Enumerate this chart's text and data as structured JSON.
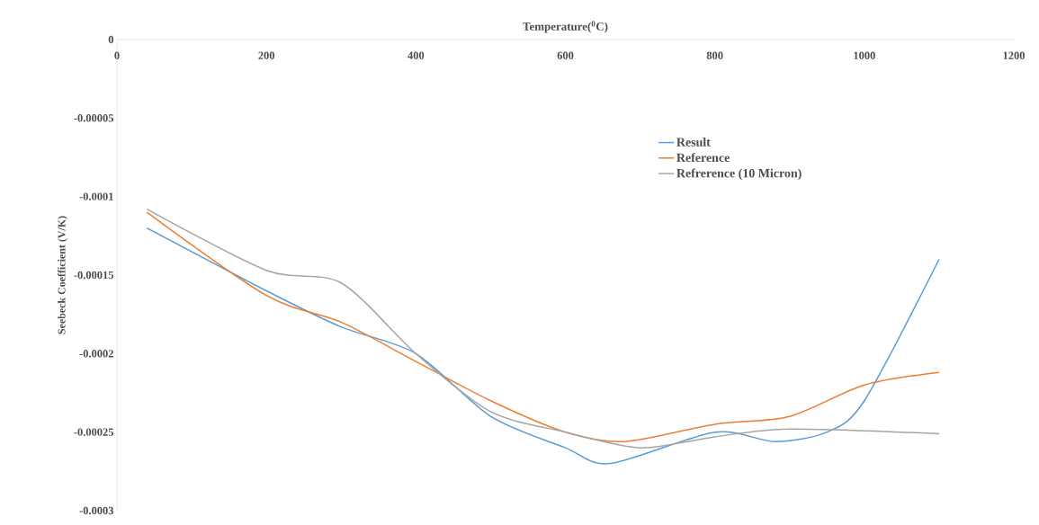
{
  "chart_data": {
    "type": "line",
    "xlabel": "Temperature($^{0}$C)",
    "ylabel": "Seebeck Coefficient (V/K)",
    "xlim": [
      0,
      1200
    ],
    "xticks": [
      0,
      200,
      400,
      600,
      800,
      1000,
      1200
    ],
    "ylim": [
      -0.0003,
      0
    ],
    "yticks": [
      {
        "value": 0,
        "label": "0"
      },
      {
        "value": -5e-05,
        "label": "-0.00005"
      },
      {
        "value": -0.0001,
        "label": "-0.0001"
      },
      {
        "value": -0.00015,
        "label": "-0.00015"
      },
      {
        "value": -0.0002,
        "label": "-0.0002"
      },
      {
        "value": -0.00025,
        "label": "-0.00025"
      },
      {
        "value": -0.0003,
        "label": "-0.0003"
      }
    ],
    "grid": false,
    "legend": "right",
    "marker": "none",
    "line_style": "solid",
    "series": [
      {
        "name": "Result",
        "color": "#5b9bd5",
        "x": [
          40,
          200,
          300,
          400,
          500,
          600,
          660,
          800,
          880,
          950,
          1000,
          1100
        ],
        "values": [
          -0.00012,
          -0.00016,
          -0.000183,
          -0.0002,
          -0.00024,
          -0.00026,
          -0.00027,
          -0.00025,
          -0.000256,
          -0.00025,
          -0.00023,
          -0.00014
        ]
      },
      {
        "name": "Reference",
        "color": "#ed7d31",
        "x": [
          40,
          200,
          300,
          400,
          500,
          600,
          680,
          800,
          900,
          1000,
          1100
        ],
        "values": [
          -0.00011,
          -0.000163,
          -0.00018,
          -0.000205,
          -0.00023,
          -0.00025,
          -0.000256,
          -0.000245,
          -0.00024,
          -0.00022,
          -0.000212
        ]
      },
      {
        "name": "Refrerence (10 Micron)",
        "color": "#a5a5a5",
        "x": [
          40,
          200,
          300,
          400,
          500,
          600,
          700,
          800,
          900,
          1100
        ],
        "values": [
          -0.000108,
          -0.000147,
          -0.000155,
          -0.0002,
          -0.000237,
          -0.00025,
          -0.00026,
          -0.000253,
          -0.000248,
          -0.000251
        ]
      }
    ]
  }
}
